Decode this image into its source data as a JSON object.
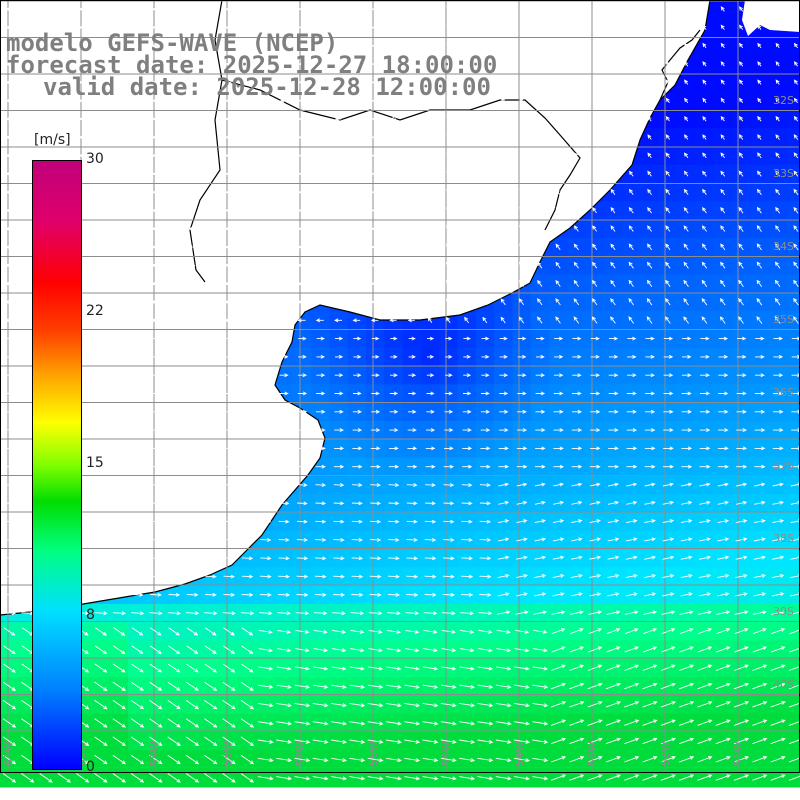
{
  "title": {
    "line1": "modelo GEFS-WAVE (NCEP)",
    "line2": "forecast date: 2025-12-27 18:00:00",
    "line3": "valid date: 2025-12-28 12:00:00"
  },
  "colorbar": {
    "unit": "[m/s]",
    "ticks": [
      "30",
      "22",
      "15",
      "8",
      "0"
    ],
    "tick_values": [
      30,
      22,
      15,
      8,
      0
    ],
    "min": 0,
    "max": 30,
    "colors": [
      "#0000ff",
      "#0080ff",
      "#00e0ff",
      "#00ff80",
      "#00dd00",
      "#80ff00",
      "#ffff00",
      "#ffa000",
      "#ff4000",
      "#ff0000",
      "#c0007a"
    ]
  },
  "map": {
    "land_color": "#ffffff",
    "grid_color": "#808080",
    "coast_color": "#000000",
    "arrow_color": "#ffffff",
    "lat_labels": [
      "32S",
      "33S",
      "34S",
      "35S",
      "36S",
      "37S",
      "38S",
      "39S",
      "40S"
    ],
    "lon_labels": [
      "61W",
      "60W",
      "59W",
      "58W",
      "57W",
      "56W",
      "55W",
      "54W",
      "53W",
      "52W",
      "51W"
    ]
  }
}
